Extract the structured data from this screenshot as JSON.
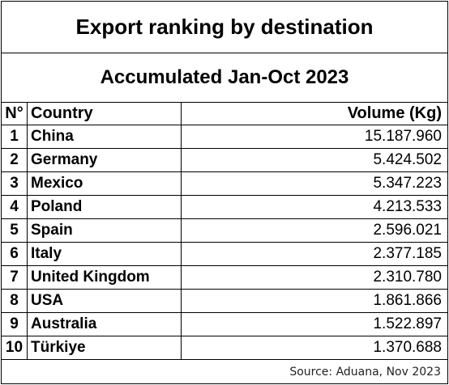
{
  "title": "Export ranking by destination",
  "subtitle": "Accumulated Jan-Oct 2023",
  "headers": {
    "num": "N°",
    "country": "Country",
    "volume": "Volume (Kg)"
  },
  "rows": [
    {
      "num": "1",
      "country": "China",
      "volume": "15.187.960"
    },
    {
      "num": "2",
      "country": "Germany",
      "volume": "5.424.502"
    },
    {
      "num": "3",
      "country": "Mexico",
      "volume": "5.347.223"
    },
    {
      "num": "4",
      "country": "Poland",
      "volume": "4.213.533"
    },
    {
      "num": "5",
      "country": "Spain",
      "volume": "2.596.021"
    },
    {
      "num": "6",
      "country": "Italy",
      "volume": "2.377.185"
    },
    {
      "num": "7",
      "country": "United Kingdom",
      "volume": "2.310.780"
    },
    {
      "num": "8",
      "country": "USA",
      "volume": "1.861.866"
    },
    {
      "num": "9",
      "country": "Australia",
      "volume": "1.522.897"
    },
    {
      "num": "10",
      "country": "Türkiye",
      "volume": "1.370.688"
    }
  ],
  "source": "Source: Aduana, Nov 2023"
}
